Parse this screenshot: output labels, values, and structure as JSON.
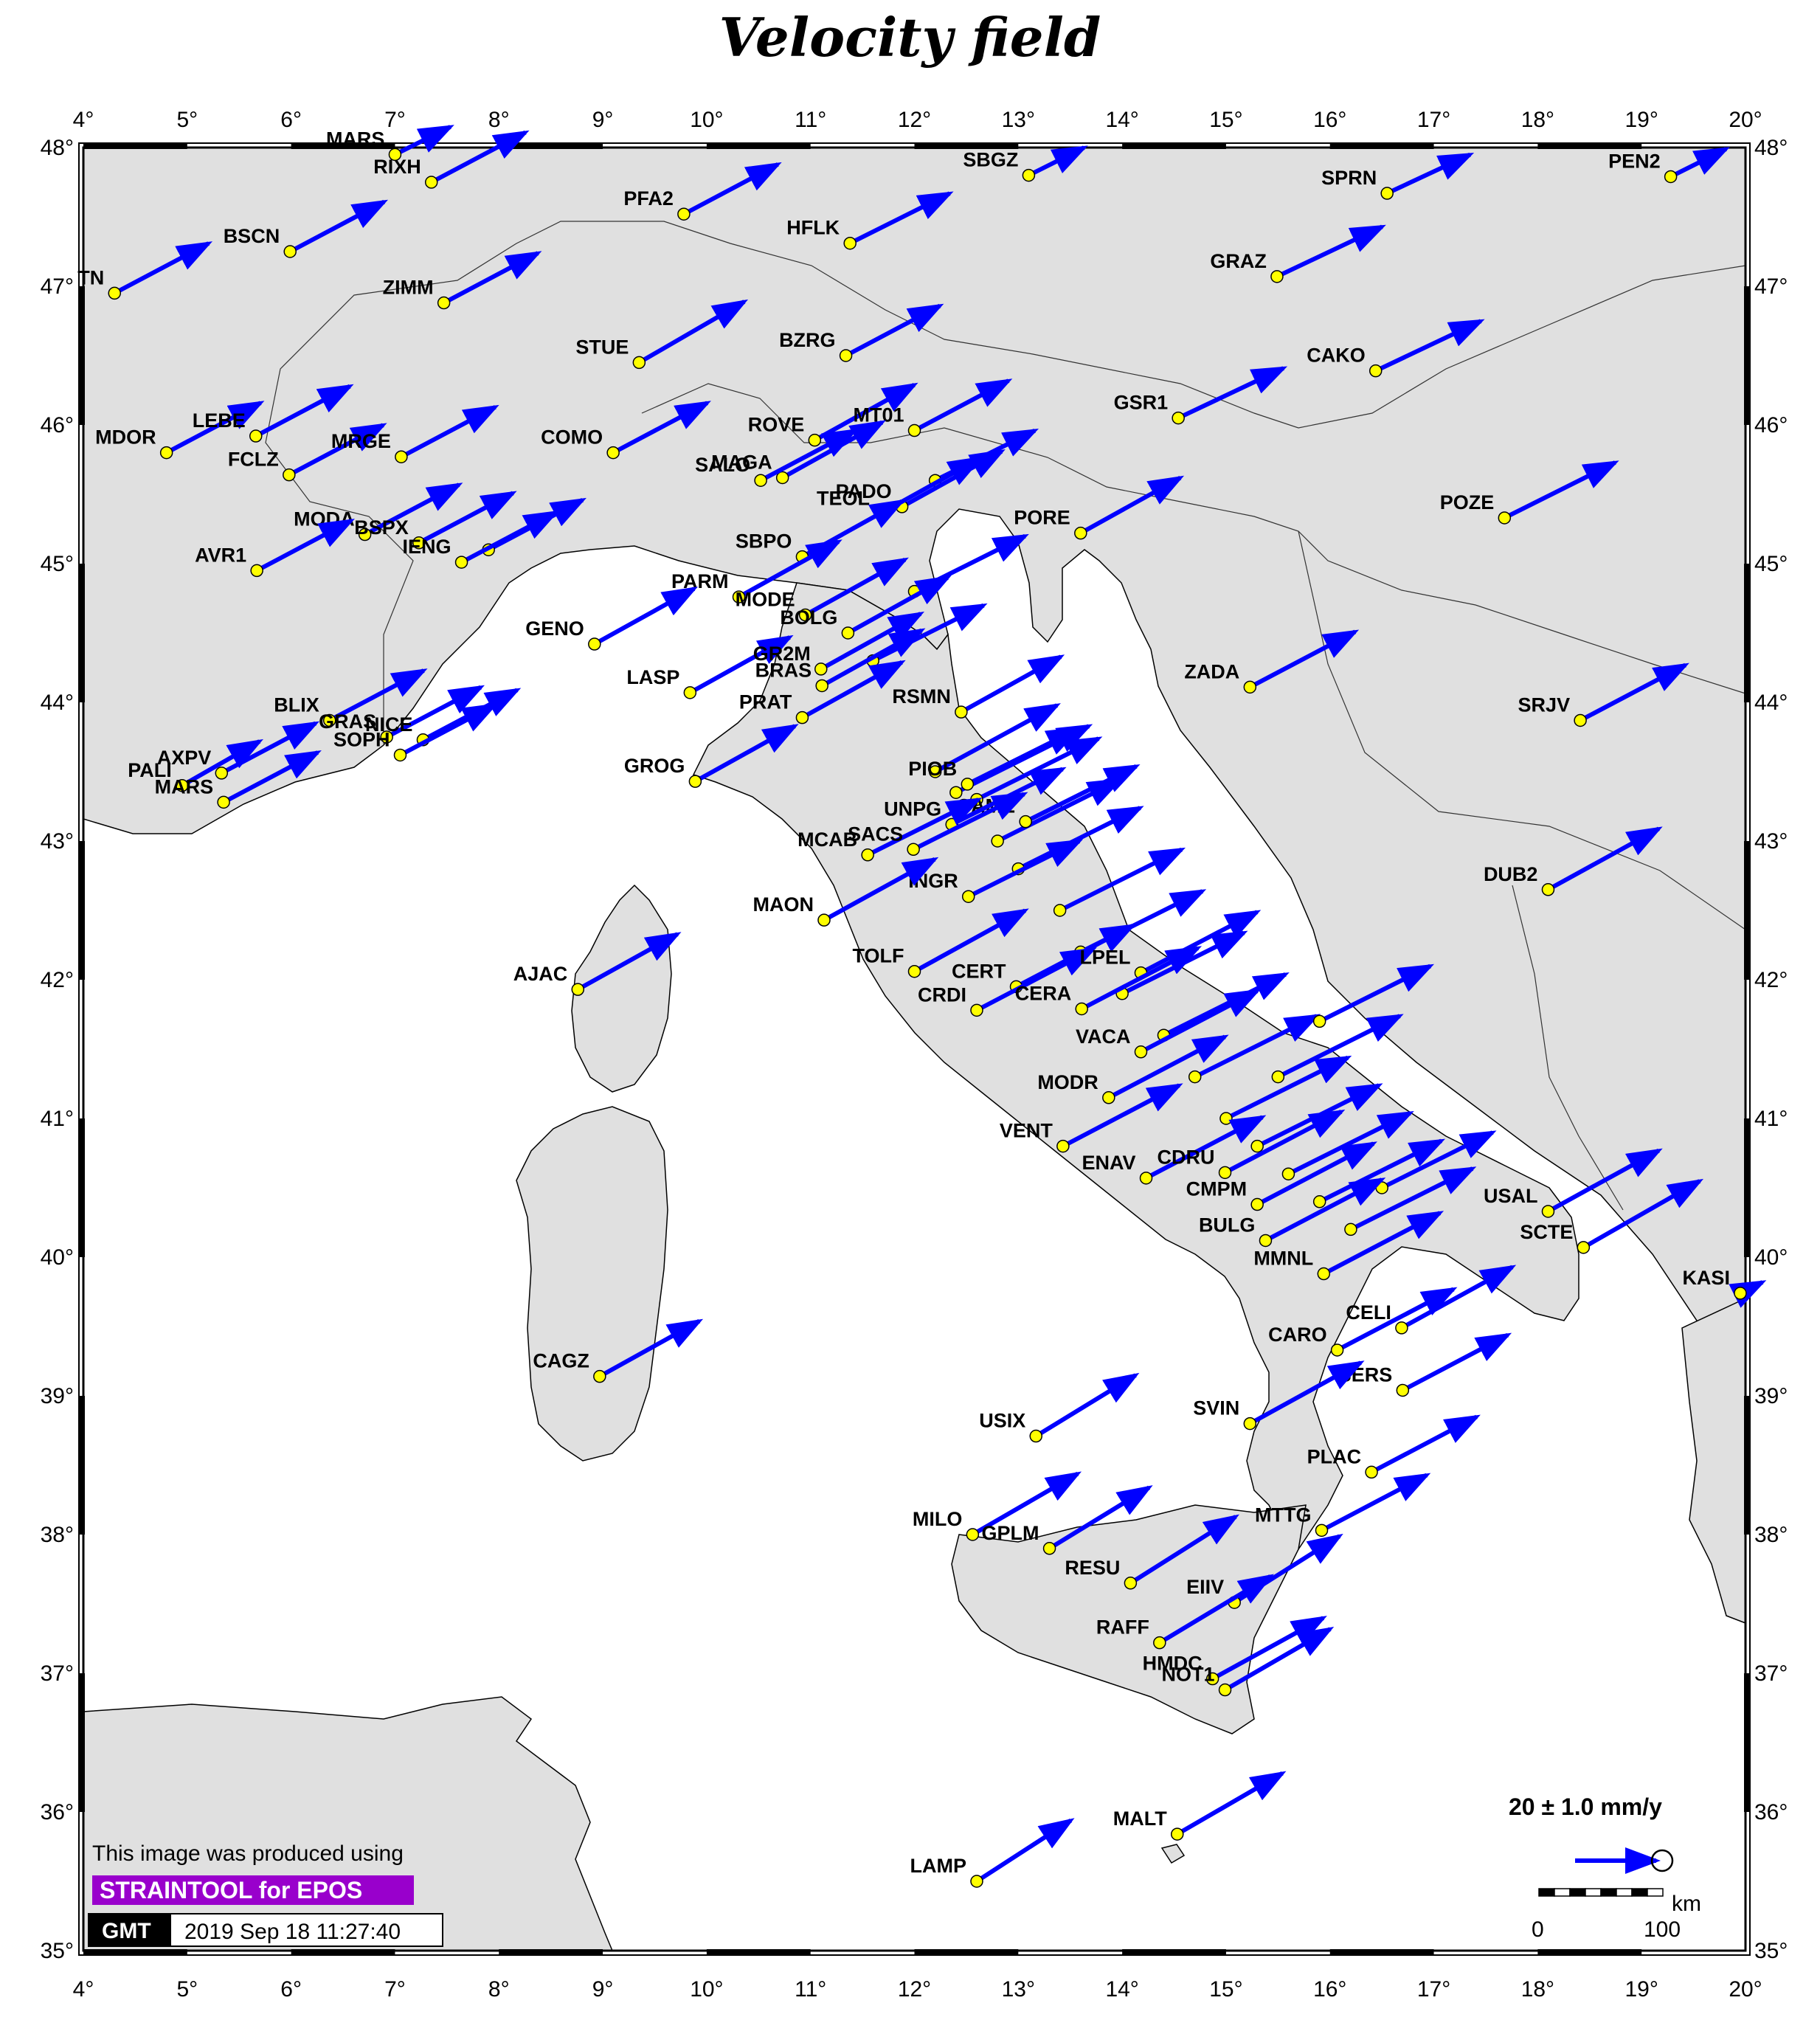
{
  "title": "Velocity field",
  "colors": {
    "land": "#e0e0e0",
    "sea": "#ffffff",
    "arrow": "#0000ff",
    "station_fill": "#ffff00",
    "badge": "#9900cc"
  },
  "axes": {
    "lon_ticks": [
      "4°",
      "5°",
      "6°",
      "7°",
      "8°",
      "9°",
      "10°",
      "11°",
      "12°",
      "13°",
      "14°",
      "15°",
      "16°",
      "17°",
      "18°",
      "19°",
      "20°"
    ],
    "lat_ticks": [
      "48°",
      "47°",
      "46°",
      "45°",
      "44°",
      "43°",
      "42°",
      "41°",
      "40°",
      "39°",
      "38°",
      "37°",
      "36°",
      "35°"
    ],
    "lon_range": [
      4,
      20
    ],
    "lat_range": [
      35,
      48
    ]
  },
  "legend": {
    "scale_text": "20 ± 1.0 mm/y",
    "km_unit": "km",
    "km_start": "0",
    "km_end": "100"
  },
  "credits": {
    "line1": "This image was produced using",
    "badge_text": "STRAINTOOL for EPOS",
    "logo_text": "GMT",
    "timestamp": "2019 Sep 18 11:27:40"
  },
  "stations": [
    {
      "name": "TN",
      "lon": 4.3,
      "lat": 46.95,
      "dx": 0.85,
      "dy": 0.45
    },
    {
      "name": "BSCN",
      "lon": 5.99,
      "lat": 47.25,
      "dx": 0.85,
      "dy": 0.45
    },
    {
      "name": "RIXH",
      "lon": 7.35,
      "lat": 47.75,
      "dx": 0.85,
      "dy": 0.45
    },
    {
      "name": "MARS",
      "lon": 7.0,
      "lat": 47.95,
      "dx": 0.5,
      "dy": 0.25
    },
    {
      "name": "PFA2",
      "lon": 9.78,
      "lat": 47.52,
      "dx": 0.85,
      "dy": 0.45
    },
    {
      "name": "HFLK",
      "lon": 11.38,
      "lat": 47.31,
      "dx": 0.9,
      "dy": 0.45
    },
    {
      "name": "SBGZ",
      "lon": 13.1,
      "lat": 47.8,
      "dx": 0.5,
      "dy": 0.25
    },
    {
      "name": "SPRN",
      "lon": 16.55,
      "lat": 47.67,
      "dx": 0.75,
      "dy": 0.35
    },
    {
      "name": "PEN2",
      "lon": 19.28,
      "lat": 47.79,
      "dx": 0.5,
      "dy": 0.25
    },
    {
      "name": "ZIMM",
      "lon": 7.47,
      "lat": 46.88,
      "dx": 0.85,
      "dy": 0.45
    },
    {
      "name": "STUE",
      "lon": 9.35,
      "lat": 46.45,
      "dx": 0.95,
      "dy": 0.55
    },
    {
      "name": "BZRG",
      "lon": 11.34,
      "lat": 46.5,
      "dx": 0.85,
      "dy": 0.45
    },
    {
      "name": "GRAZ",
      "lon": 15.49,
      "lat": 47.07,
      "dx": 0.95,
      "dy": 0.45
    },
    {
      "name": "CAKO",
      "lon": 16.44,
      "lat": 46.39,
      "dx": 0.95,
      "dy": 0.45
    },
    {
      "name": "MDOR",
      "lon": 4.8,
      "lat": 45.8,
      "dx": 0.85,
      "dy": 0.45
    },
    {
      "name": "LEBE",
      "lon": 5.66,
      "lat": 45.92,
      "dx": 0.85,
      "dy": 0.45
    },
    {
      "name": "FCLZ",
      "lon": 5.98,
      "lat": 45.64,
      "dx": 0.85,
      "dy": 0.45
    },
    {
      "name": "MRGE",
      "lon": 7.06,
      "lat": 45.77,
      "dx": 0.85,
      "dy": 0.45
    },
    {
      "name": "COMO",
      "lon": 9.1,
      "lat": 45.8,
      "dx": 0.85,
      "dy": 0.45
    },
    {
      "name": "ROVE",
      "lon": 11.04,
      "lat": 45.89,
      "dx": 0.9,
      "dy": 0.5
    },
    {
      "name": "MT01",
      "lon": 12.0,
      "lat": 45.96,
      "dx": 0.85,
      "dy": 0.45
    },
    {
      "name": "GSR1",
      "lon": 14.54,
      "lat": 46.05,
      "dx": 0.95,
      "dy": 0.45
    },
    {
      "name": "POZE",
      "lon": 17.68,
      "lat": 45.33,
      "dx": 1.0,
      "dy": 0.5
    },
    {
      "name": "MAGA",
      "lon": 10.73,
      "lat": 45.62,
      "dx": 0.9,
      "dy": 0.5
    },
    {
      "name": "SALO",
      "lon": 10.52,
      "lat": 45.6,
      "dx": 0.85,
      "dy": 0.45
    },
    {
      "name": "PADO",
      "lon": 11.88,
      "lat": 45.41,
      "dx": 0.9,
      "dy": 0.5
    },
    {
      "name": "TEOL",
      "lon": 11.67,
      "lat": 45.36,
      "dx": 0.9,
      "dy": 0.5
    },
    {
      "name": "MODA",
      "lon": 6.71,
      "lat": 45.21,
      "dx": 0.85,
      "dy": 0.45
    },
    {
      "name": "BSPX",
      "lon": 7.23,
      "lat": 45.15,
      "dx": 0.85,
      "dy": 0.45
    },
    {
      "name": "IENG",
      "lon": 7.64,
      "lat": 45.01,
      "dx": 0.85,
      "dy": 0.45
    },
    {
      "name": "AVR1",
      "lon": 5.67,
      "lat": 44.95,
      "dx": 0.85,
      "dy": 0.45
    },
    {
      "name": "SBPO",
      "lon": 10.92,
      "lat": 45.05,
      "dx": 0.9,
      "dy": 0.5
    },
    {
      "name": "PORE",
      "lon": 13.6,
      "lat": 45.22,
      "dx": 0.9,
      "dy": 0.5
    },
    {
      "name": "PARM",
      "lon": 10.31,
      "lat": 44.76,
      "dx": 0.9,
      "dy": 0.5
    },
    {
      "name": "GENO",
      "lon": 8.92,
      "lat": 44.42,
      "dx": 0.9,
      "dy": 0.5
    },
    {
      "name": "MODE",
      "lon": 10.95,
      "lat": 44.63,
      "dx": 0.9,
      "dy": 0.5
    },
    {
      "name": "BOLG",
      "lon": 11.36,
      "lat": 44.5,
      "dx": 0.9,
      "dy": 0.5
    },
    {
      "name": "ZADA",
      "lon": 15.23,
      "lat": 44.11,
      "dx": 0.95,
      "dy": 0.5
    },
    {
      "name": "LASP",
      "lon": 9.84,
      "lat": 44.07,
      "dx": 0.9,
      "dy": 0.5
    },
    {
      "name": "GR2M",
      "lon": 11.1,
      "lat": 44.24,
      "dx": 0.9,
      "dy": 0.5
    },
    {
      "name": "BRAS",
      "lon": 11.11,
      "lat": 44.12,
      "dx": 0.9,
      "dy": 0.5
    },
    {
      "name": "SRJV",
      "lon": 18.41,
      "lat": 43.87,
      "dx": 0.95,
      "dy": 0.5
    },
    {
      "name": "PRAT",
      "lon": 10.92,
      "lat": 43.89,
      "dx": 0.9,
      "dy": 0.5
    },
    {
      "name": "RSMN",
      "lon": 12.45,
      "lat": 43.93,
      "dx": 0.9,
      "dy": 0.5
    },
    {
      "name": "BLIX",
      "lon": 6.37,
      "lat": 43.87,
      "dx": 0.85,
      "dy": 0.45
    },
    {
      "name": "GRAS",
      "lon": 6.92,
      "lat": 43.75,
      "dx": 0.85,
      "dy": 0.45
    },
    {
      "name": "NICE",
      "lon": 7.27,
      "lat": 43.73,
      "dx": 0.85,
      "dy": 0.45
    },
    {
      "name": "SOPH",
      "lon": 7.05,
      "lat": 43.62,
      "dx": 0.85,
      "dy": 0.45
    },
    {
      "name": "PIOB",
      "lon": 12.51,
      "lat": 43.41,
      "dx": 1.0,
      "dy": 0.5
    },
    {
      "name": "AXPV",
      "lon": 5.33,
      "lat": 43.49,
      "dx": 0.85,
      "dy": 0.45
    },
    {
      "name": "PALI",
      "lon": 4.95,
      "lat": 43.4,
      "dx": 0.7,
      "dy": 0.4
    },
    {
      "name": "MARS",
      "lon": 5.35,
      "lat": 43.28,
      "dx": 0.85,
      "dy": 0.45
    },
    {
      "name": "GROG",
      "lon": 9.89,
      "lat": 43.43,
      "dx": 0.9,
      "dy": 0.5
    },
    {
      "name": "CAME",
      "lon": 13.07,
      "lat": 43.14,
      "dx": 1.0,
      "dy": 0.5
    },
    {
      "name": "UNPG",
      "lon": 12.36,
      "lat": 43.12,
      "dx": 1.0,
      "dy": 0.5
    },
    {
      "name": "DUB2",
      "lon": 18.1,
      "lat": 42.65,
      "dx": 1.0,
      "dy": 0.55
    },
    {
      "name": "MCAB",
      "lon": 11.55,
      "lat": 42.9,
      "dx": 1.0,
      "dy": 0.5
    },
    {
      "name": "SACS",
      "lon": 11.99,
      "lat": 42.94,
      "dx": 1.0,
      "dy": 0.5
    },
    {
      "name": "INGR",
      "lon": 12.52,
      "lat": 42.6,
      "dx": 1.0,
      "dy": 0.5
    },
    {
      "name": "MAON",
      "lon": 11.13,
      "lat": 42.43,
      "dx": 1.0,
      "dy": 0.55
    },
    {
      "name": "AJAC",
      "lon": 8.76,
      "lat": 41.93,
      "dx": 0.9,
      "dy": 0.5
    },
    {
      "name": "TOLF",
      "lon": 12.0,
      "lat": 42.06,
      "dx": 1.0,
      "dy": 0.55
    },
    {
      "name": "CERT",
      "lon": 12.98,
      "lat": 41.95,
      "dx": 1.05,
      "dy": 0.55
    },
    {
      "name": "CRDI",
      "lon": 12.6,
      "lat": 41.78,
      "dx": 1.05,
      "dy": 0.55
    },
    {
      "name": "LPEL",
      "lon": 14.18,
      "lat": 42.05,
      "dx": 1.05,
      "dy": 0.55
    },
    {
      "name": "CERA",
      "lon": 13.61,
      "lat": 41.79,
      "dx": 1.05,
      "dy": 0.55
    },
    {
      "name": "VACA",
      "lon": 14.18,
      "lat": 41.48,
      "dx": 1.05,
      "dy": 0.55
    },
    {
      "name": "MODR",
      "lon": 13.87,
      "lat": 41.15,
      "dx": 1.05,
      "dy": 0.55
    },
    {
      "name": "VENT",
      "lon": 13.43,
      "lat": 40.8,
      "dx": 1.05,
      "dy": 0.55
    },
    {
      "name": "ENAV",
      "lon": 14.23,
      "lat": 40.57,
      "dx": 1.05,
      "dy": 0.55
    },
    {
      "name": "CDRU",
      "lon": 14.99,
      "lat": 40.61,
      "dx": 1.05,
      "dy": 0.55
    },
    {
      "name": "CMPM",
      "lon": 15.3,
      "lat": 40.38,
      "dx": 1.05,
      "dy": 0.55
    },
    {
      "name": "BULG",
      "lon": 15.38,
      "lat": 40.12,
      "dx": 1.05,
      "dy": 0.55
    },
    {
      "name": "USAL",
      "lon": 18.1,
      "lat": 40.33,
      "dx": 1.0,
      "dy": 0.55
    },
    {
      "name": "SCTE",
      "lon": 18.44,
      "lat": 40.07,
      "dx": 1.05,
      "dy": 0.6
    },
    {
      "name": "MMNL",
      "lon": 15.94,
      "lat": 39.88,
      "dx": 1.05,
      "dy": 0.55
    },
    {
      "name": "KASI",
      "lon": 19.95,
      "lat": 39.74,
      "dx": 0.2,
      "dy": 0.1
    },
    {
      "name": "CELI",
      "lon": 16.69,
      "lat": 39.49,
      "dx": 1.0,
      "dy": 0.55
    },
    {
      "name": "CARO",
      "lon": 16.07,
      "lat": 39.33,
      "dx": 1.05,
      "dy": 0.55
    },
    {
      "name": "SERS",
      "lon": 16.7,
      "lat": 39.04,
      "dx": 0.95,
      "dy": 0.5
    },
    {
      "name": "CAGZ",
      "lon": 8.97,
      "lat": 39.14,
      "dx": 0.9,
      "dy": 0.5
    },
    {
      "name": "USIX",
      "lon": 13.17,
      "lat": 38.71,
      "dx": 0.9,
      "dy": 0.55
    },
    {
      "name": "SVIN",
      "lon": 15.23,
      "lat": 38.8,
      "dx": 1.0,
      "dy": 0.55
    },
    {
      "name": "PLAC",
      "lon": 16.4,
      "lat": 38.45,
      "dx": 0.95,
      "dy": 0.5
    },
    {
      "name": "MILO",
      "lon": 12.56,
      "lat": 38.0,
      "dx": 0.95,
      "dy": 0.55
    },
    {
      "name": "GPLM",
      "lon": 13.3,
      "lat": 37.9,
      "dx": 0.9,
      "dy": 0.55
    },
    {
      "name": "RESU",
      "lon": 14.08,
      "lat": 37.65,
      "dx": 0.95,
      "dy": 0.6
    },
    {
      "name": "MTTG",
      "lon": 15.92,
      "lat": 38.03,
      "dx": 0.95,
      "dy": 0.5
    },
    {
      "name": "EIIV",
      "lon": 15.08,
      "lat": 37.51,
      "dx": 0.95,
      "dy": 0.6
    },
    {
      "name": "RAFF",
      "lon": 14.36,
      "lat": 37.22,
      "dx": 1.0,
      "dy": 0.6
    },
    {
      "name": "HMDC",
      "lon": 14.87,
      "lat": 36.96,
      "dx": 1.0,
      "dy": 0.55
    },
    {
      "name": "NOT1",
      "lon": 14.99,
      "lat": 36.88,
      "dx": 0.95,
      "dy": 0.55
    },
    {
      "name": "MALT",
      "lon": 14.53,
      "lat": 35.84,
      "dx": 0.95,
      "dy": 0.55
    },
    {
      "name": "LAMP",
      "lon": 12.6,
      "lat": 35.5,
      "dx": 0.85,
      "dy": 0.55
    }
  ],
  "extra_stations": [
    {
      "name": "",
      "lon": 12.2,
      "lat": 43.5,
      "dx": 1.1,
      "dy": 0.6
    },
    {
      "name": "",
      "lon": 12.4,
      "lat": 43.35,
      "dx": 1.2,
      "dy": 0.6
    },
    {
      "name": "",
      "lon": 12.6,
      "lat": 43.3,
      "dx": 1.1,
      "dy": 0.55
    },
    {
      "name": "",
      "lon": 12.8,
      "lat": 43.0,
      "dx": 1.1,
      "dy": 0.55
    },
    {
      "name": "",
      "lon": 13.0,
      "lat": 42.8,
      "dx": 1.1,
      "dy": 0.55
    },
    {
      "name": "",
      "lon": 13.4,
      "lat": 42.5,
      "dx": 1.1,
      "dy": 0.55
    },
    {
      "name": "",
      "lon": 13.6,
      "lat": 42.2,
      "dx": 1.1,
      "dy": 0.55
    },
    {
      "name": "",
      "lon": 14.0,
      "lat": 41.9,
      "dx": 1.1,
      "dy": 0.55
    },
    {
      "name": "",
      "lon": 14.4,
      "lat": 41.6,
      "dx": 1.1,
      "dy": 0.55
    },
    {
      "name": "",
      "lon": 14.7,
      "lat": 41.3,
      "dx": 1.1,
      "dy": 0.55
    },
    {
      "name": "",
      "lon": 15.0,
      "lat": 41.0,
      "dx": 1.1,
      "dy": 0.55
    },
    {
      "name": "",
      "lon": 15.3,
      "lat": 40.8,
      "dx": 1.1,
      "dy": 0.55
    },
    {
      "name": "",
      "lon": 15.6,
      "lat": 40.6,
      "dx": 1.1,
      "dy": 0.55
    },
    {
      "name": "",
      "lon": 15.9,
      "lat": 40.4,
      "dx": 1.1,
      "dy": 0.55
    },
    {
      "name": "",
      "lon": 16.2,
      "lat": 40.2,
      "dx": 1.1,
      "dy": 0.55
    },
    {
      "name": "",
      "lon": 16.5,
      "lat": 40.5,
      "dx": 1.0,
      "dy": 0.5
    },
    {
      "name": "",
      "lon": 15.5,
      "lat": 41.3,
      "dx": 1.1,
      "dy": 0.55
    },
    {
      "name": "",
      "lon": 15.9,
      "lat": 41.7,
      "dx": 1.0,
      "dy": 0.5
    },
    {
      "name": "",
      "lon": 12.0,
      "lat": 44.8,
      "dx": 1.0,
      "dy": 0.5
    },
    {
      "name": "",
      "lon": 11.6,
      "lat": 44.3,
      "dx": 1.0,
      "dy": 0.5
    },
    {
      "name": "",
      "lon": 7.9,
      "lat": 45.1,
      "dx": 0.85,
      "dy": 0.45
    },
    {
      "name": "",
      "lon": 12.2,
      "lat": 45.6,
      "dx": 0.9,
      "dy": 0.45
    }
  ]
}
